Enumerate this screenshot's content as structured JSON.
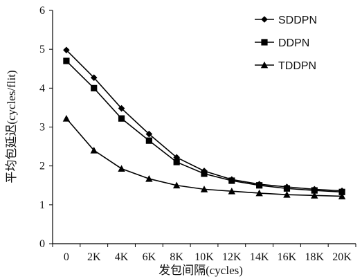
{
  "chart_data": {
    "type": "line",
    "xlabel": "发包间隔(cycles)",
    "ylabel": "平均包延迟(cycles/flit)",
    "ylim": [
      0,
      6
    ],
    "yticks": [
      "0",
      "1",
      "2",
      "3",
      "4",
      "5",
      "6"
    ],
    "categories": [
      "0",
      "2K",
      "4K",
      "6K",
      "8K",
      "10K",
      "12K",
      "14K",
      "16K",
      "18K",
      "20K"
    ],
    "grid": false,
    "legend_position": "top-right",
    "series": [
      {
        "name": "SDDPN",
        "marker": "diamond",
        "color": "#000000",
        "values": [
          4.98,
          4.27,
          3.48,
          2.82,
          2.22,
          1.87,
          1.65,
          1.53,
          1.46,
          1.4,
          1.36
        ]
      },
      {
        "name": "DDPN",
        "marker": "square",
        "color": "#000000",
        "values": [
          4.7,
          4.0,
          3.22,
          2.65,
          2.1,
          1.8,
          1.62,
          1.5,
          1.42,
          1.37,
          1.33
        ]
      },
      {
        "name": "TDDPN",
        "marker": "triangle",
        "color": "#000000",
        "values": [
          3.22,
          2.4,
          1.93,
          1.67,
          1.5,
          1.4,
          1.35,
          1.3,
          1.26,
          1.24,
          1.22
        ]
      }
    ]
  }
}
